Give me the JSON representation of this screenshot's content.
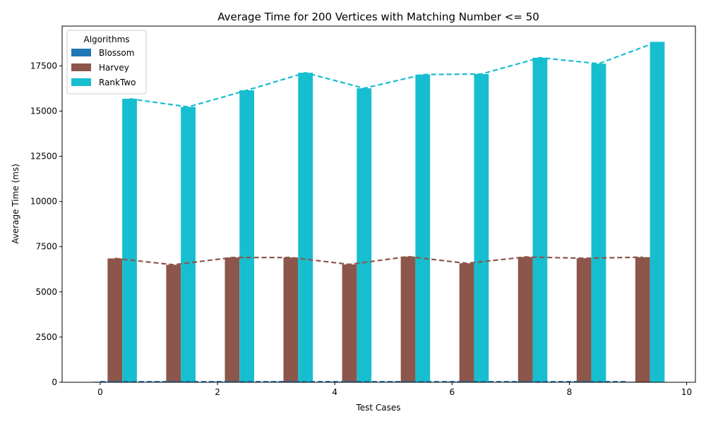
{
  "chart_data": {
    "type": "bar",
    "title": "Average Time for 200 Vertices with Matching Number <= 50",
    "xlabel": "Test Cases",
    "ylabel": "Average Time (ms)",
    "xlim": [
      -0.65,
      10.15
    ],
    "ylim": [
      0,
      19700
    ],
    "xticks": [
      0,
      2,
      4,
      6,
      8,
      10
    ],
    "yticks": [
      0,
      2500,
      5000,
      7500,
      10000,
      12500,
      15000,
      17500
    ],
    "grid": false,
    "legend": {
      "title": "Algorithms",
      "position": "top-left"
    },
    "bar_width": 0.25,
    "series": [
      {
        "name": "Blossom",
        "color": "#1f77b4",
        "offset": 0,
        "x": [
          0,
          1,
          2,
          3,
          4,
          5,
          6,
          7,
          8,
          9
        ],
        "values": [
          30,
          30,
          30,
          30,
          30,
          30,
          30,
          30,
          30,
          30
        ]
      },
      {
        "name": "Harvey",
        "color": "#8c564b",
        "offset": 0.25,
        "x": [
          0,
          1,
          2,
          3,
          4,
          5,
          6,
          7,
          8,
          9
        ],
        "values": [
          6850,
          6500,
          6900,
          6900,
          6520,
          6950,
          6580,
          6930,
          6860,
          6920
        ]
      },
      {
        "name": "RankTwo",
        "color": "#17becf",
        "offset": 0.5,
        "x": [
          0,
          1,
          2,
          3,
          4,
          5,
          6,
          7,
          8,
          9
        ],
        "values": [
          15680,
          15230,
          16150,
          17120,
          16260,
          17020,
          17050,
          17950,
          17620,
          18830
        ]
      }
    ]
  }
}
